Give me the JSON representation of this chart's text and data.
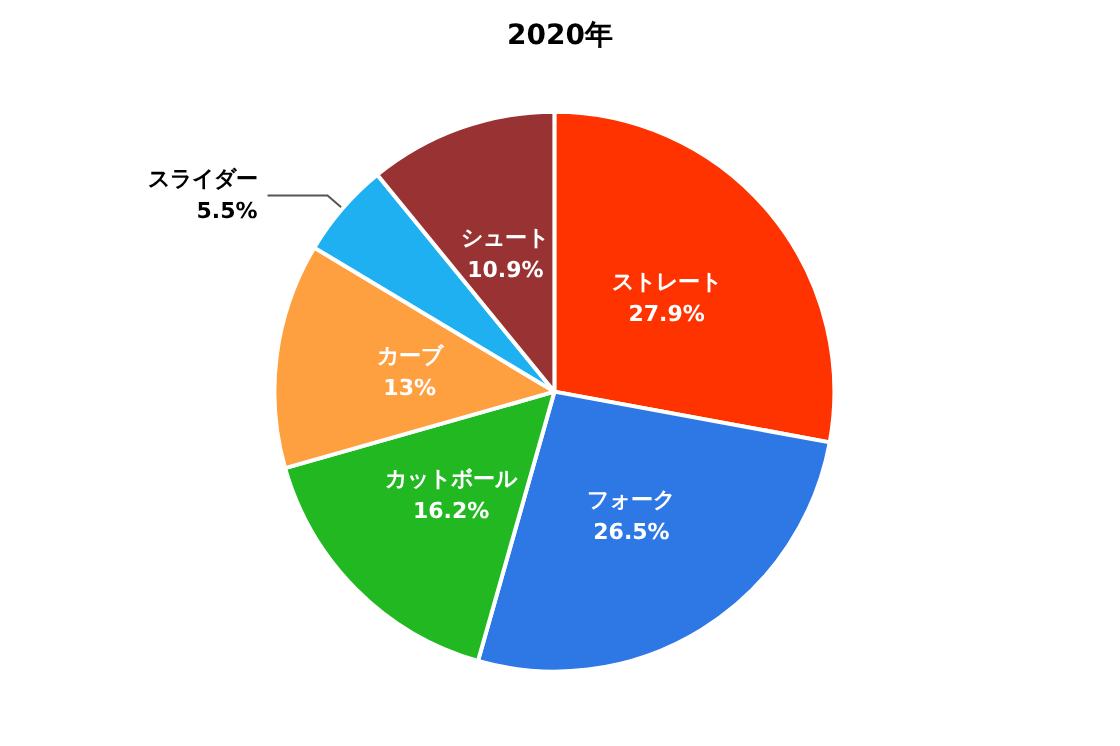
{
  "chart_data": {
    "type": "pie",
    "title": "2020年",
    "categories": [
      "ストレート",
      "フォーク",
      "カットボール",
      "カーブ",
      "スライダー",
      "シュート"
    ],
    "values": [
      27.9,
      26.5,
      16.2,
      13,
      5.5,
      10.9
    ],
    "value_labels": [
      "27.9%",
      "26.5%",
      "16.2%",
      "13%",
      "5.5%",
      "10.9%"
    ],
    "colors": [
      "#ff3300",
      "#2e78e6",
      "#22b822",
      "#ffa040",
      "#1eb0f0",
      "#993333"
    ],
    "legend": false
  }
}
